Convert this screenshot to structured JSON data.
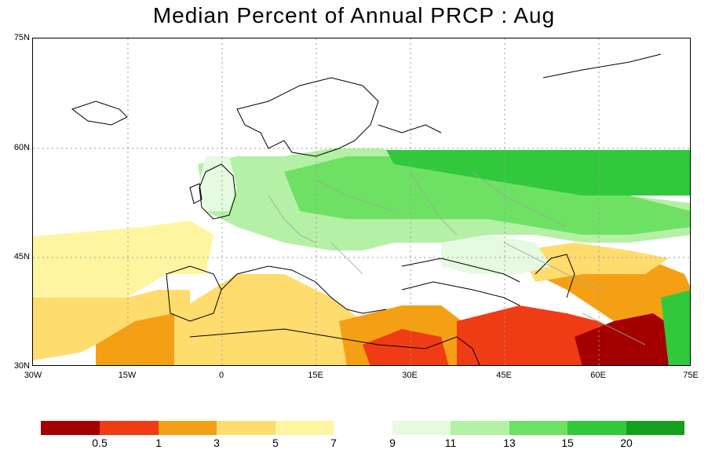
{
  "title": "Median Percent of Annual PRCP :   Aug",
  "map": {
    "lat_labels": [
      "75N",
      "60N",
      "45N",
      "30N"
    ],
    "lon_labels": [
      "30W",
      "15W",
      "0",
      "15E",
      "30E",
      "45E",
      "60E",
      "75E"
    ]
  },
  "legend": {
    "labels": [
      "0.5",
      "1",
      "3",
      "5",
      "7",
      "9",
      "11",
      "13",
      "15",
      "20"
    ],
    "colors": [
      "#a50000",
      "#f03c14",
      "#f5a014",
      "#ffdc6e",
      "#fff5a0",
      "#ffffff",
      "#e6fae1",
      "#b4f0a5",
      "#6ee164",
      "#32c83c",
      "#14a01e"
    ]
  }
}
